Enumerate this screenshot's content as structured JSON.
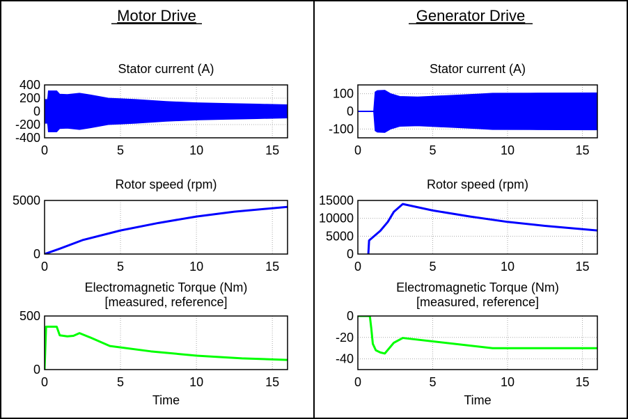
{
  "colors": {
    "current": "#0000ff",
    "speed": "#0000ff",
    "torque": "#00ff00"
  },
  "panels": [
    {
      "title": "Motor Drive"
    },
    {
      "title": "Generator Drive"
    }
  ],
  "chart_data": [
    {
      "panel": 0,
      "type": "area",
      "title": "Stator current (A)",
      "xlabel": "",
      "xlim": [
        0,
        16
      ],
      "ylim": [
        -400,
        400
      ],
      "xticks": [
        "0",
        "5",
        "10",
        "15"
      ],
      "yticks": [
        400,
        200,
        0,
        -200,
        -400
      ],
      "envelope": {
        "x": [
          0,
          0.2,
          0.25,
          0.8,
          1.0,
          1.5,
          2.3,
          3.0,
          4.2,
          6,
          8,
          10,
          12,
          14,
          16
        ],
        "amplitude": [
          180,
          180,
          310,
          310,
          260,
          255,
          275,
          250,
          200,
          180,
          150,
          130,
          120,
          110,
          100
        ]
      }
    },
    {
      "panel": 0,
      "type": "line",
      "title": "Rotor speed (rpm)",
      "xlabel": "",
      "xlim": [
        0,
        16
      ],
      "ylim": [
        0,
        5000
      ],
      "xticks": [
        "0",
        "5",
        "10",
        "15"
      ],
      "yticks": [
        5000,
        0
      ],
      "x": [
        0,
        1,
        2.5,
        5,
        7.5,
        10,
        12.5,
        16
      ],
      "y": [
        0,
        500,
        1300,
        2200,
        2900,
        3500,
        3950,
        4400
      ]
    },
    {
      "panel": 0,
      "type": "line",
      "title": "Electromagnetic Torque (Nm)",
      "subtitle": "[measured, reference]",
      "xlabel": "Time",
      "xlim": [
        0,
        16
      ],
      "ylim": [
        0,
        500
      ],
      "xticks": [
        "0",
        "5",
        "10",
        "15"
      ],
      "yticks": [
        500,
        0
      ],
      "x": [
        0,
        0.1,
        0.8,
        1.0,
        1.5,
        1.9,
        2.3,
        3.0,
        4.3,
        7,
        10,
        13,
        16
      ],
      "y": [
        0,
        400,
        400,
        320,
        310,
        315,
        340,
        300,
        220,
        170,
        130,
        105,
        90
      ]
    },
    {
      "panel": 1,
      "type": "area",
      "title": "Stator current (A)",
      "xlabel": "",
      "xlim": [
        0,
        16
      ],
      "ylim": [
        -150,
        150
      ],
      "xticks": [
        "0",
        "5",
        "10",
        "15"
      ],
      "yticks": [
        100,
        0,
        -100
      ],
      "envelope": {
        "x": [
          0,
          1.05,
          1.15,
          1.3,
          1.8,
          2.2,
          2.8,
          4,
          6,
          8,
          9,
          12,
          16
        ],
        "amplitude": [
          0,
          0,
          110,
          118,
          120,
          100,
          85,
          82,
          90,
          98,
          103,
          104,
          105
        ]
      }
    },
    {
      "panel": 1,
      "type": "line",
      "title": "Rotor speed (rpm)",
      "xlabel": "",
      "xlim": [
        0,
        16
      ],
      "ylim": [
        0,
        15000
      ],
      "xticks": [
        "0",
        "5",
        "10",
        "15"
      ],
      "yticks": [
        15000,
        10000,
        5000,
        0
      ],
      "x": [
        0.7,
        0.75,
        1.5,
        2.0,
        2.4,
        3.0,
        5,
        7.5,
        10,
        12.5,
        16
      ],
      "y": [
        0,
        3800,
        6500,
        9000,
        11800,
        14000,
        12200,
        10500,
        9000,
        7900,
        6600
      ]
    },
    {
      "panel": 1,
      "type": "line",
      "title": "Electromagnetic Torque (Nm)",
      "subtitle": "[measured, reference]",
      "xlabel": "Time",
      "xlim": [
        0,
        16
      ],
      "ylim": [
        -50,
        0
      ],
      "xticks": [
        "0",
        "5",
        "10",
        "15"
      ],
      "yticks": [
        0,
        -20,
        -40
      ],
      "x": [
        0,
        0.8,
        0.9,
        1.0,
        1.2,
        1.5,
        1.8,
        2.4,
        3.0,
        9,
        16
      ],
      "y": [
        0,
        0,
        -12,
        -26,
        -32,
        -34,
        -35,
        -25,
        -20.5,
        -30,
        -30
      ]
    }
  ]
}
